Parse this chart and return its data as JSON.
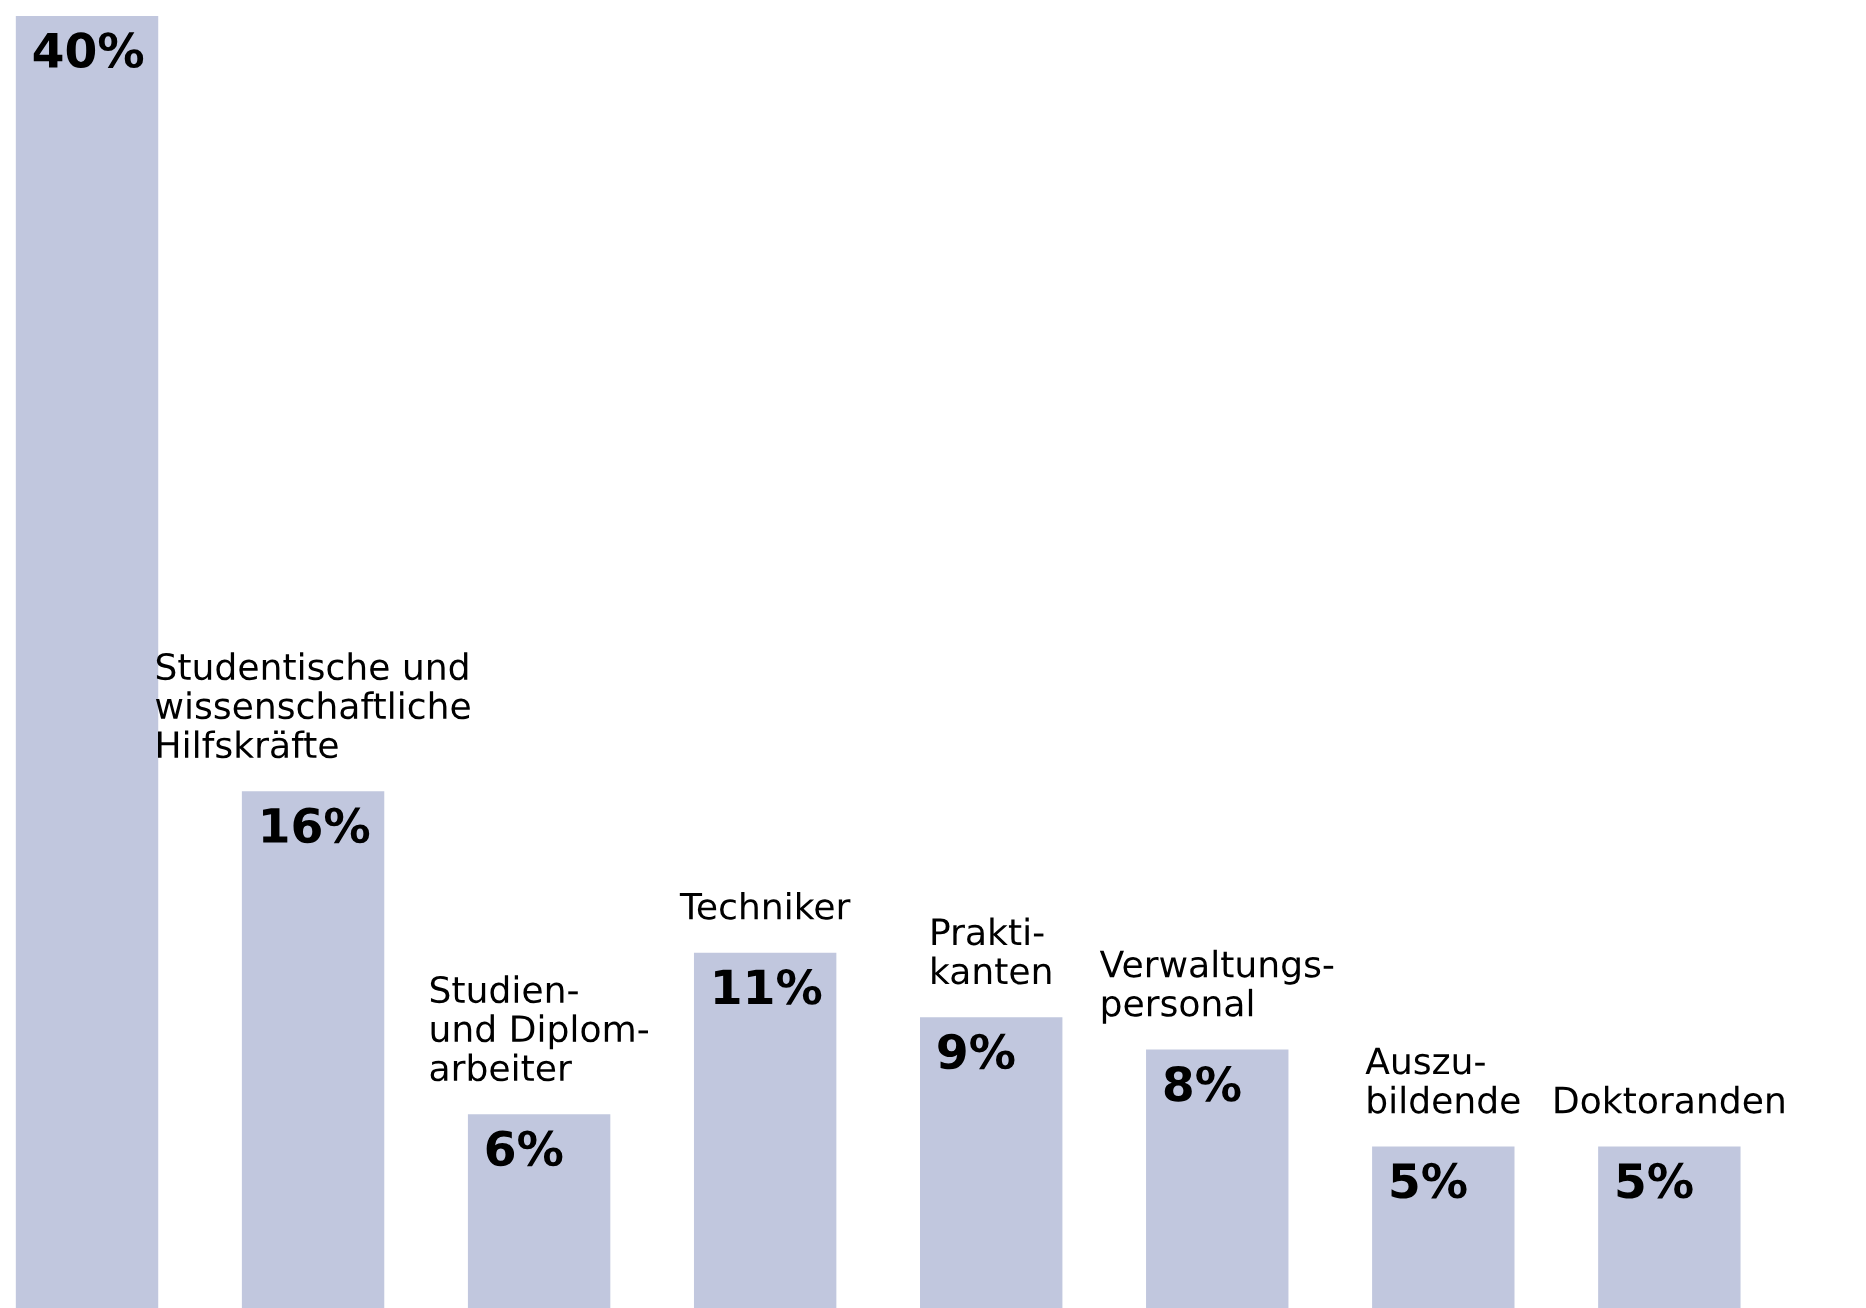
{
  "chart_data": {
    "type": "bar",
    "categories": [
      null,
      "Studentische und\nwissenschaftliche\nHilfskräfte",
      "Studien-\nund Diplom-\narbeiter",
      "Techniker",
      "Prakti-\nkanten",
      "Verwaltungs-\npersonal",
      "Auszu-\nbildende",
      "Doktoranden"
    ],
    "values": [
      40,
      16,
      6,
      11,
      9,
      8,
      5,
      5
    ],
    "value_labels": [
      "40%",
      "16%",
      "6%",
      "11%",
      "9%",
      "8%",
      "5%",
      "5%"
    ],
    "color": "#c1c7de"
  }
}
